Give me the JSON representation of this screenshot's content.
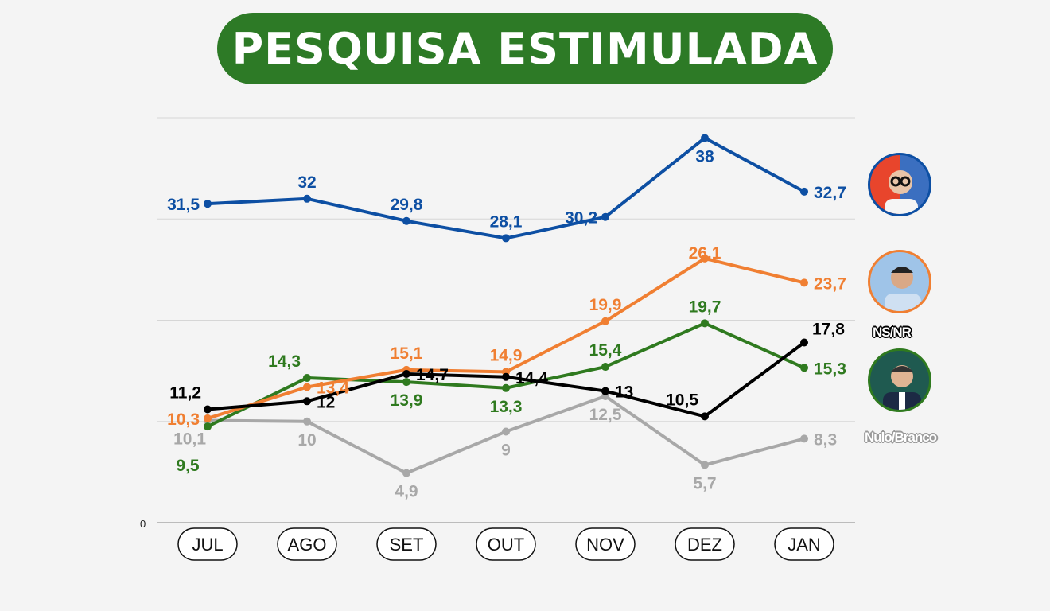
{
  "title": "PESQUISA ESTIMULADA",
  "legend": {
    "nsnr": "NS/NR",
    "nulo": "Nulo/Branco"
  },
  "chart_data": {
    "type": "line",
    "title": "PESQUISA ESTIMULADA",
    "categories": [
      "JUL",
      "AGO",
      "SET",
      "OUT",
      "NOV",
      "DEZ",
      "JAN"
    ],
    "ylim": [
      0,
      40
    ],
    "y_tick_labels": [
      "0"
    ],
    "grid": true,
    "series": [
      {
        "name": "",
        "color": "#0d4fa3",
        "values": [
          31.5,
          32,
          29.8,
          28.1,
          30.2,
          38,
          32.7
        ],
        "labels": [
          "31,5",
          "32",
          "29,8",
          "28,1",
          "30,2",
          "38",
          "32,7"
        ],
        "label_pos": [
          "left",
          "above",
          "above",
          "above",
          "left",
          "below",
          "right"
        ]
      },
      {
        "name": "",
        "color": "#f07f32",
        "values": [
          10.3,
          13.4,
          15.1,
          14.9,
          19.9,
          26.1,
          23.7
        ],
        "labels": [
          "10,3",
          "13,4",
          "15,1",
          "14,9",
          "19,9",
          "26,1",
          "23,7"
        ],
        "label_pos": [
          "left",
          "right",
          "above",
          "above",
          "above",
          "on",
          "right"
        ]
      },
      {
        "name": "",
        "color": "#2f7a1f",
        "values": [
          9.5,
          14.3,
          13.9,
          13.3,
          15.4,
          19.7,
          15.3
        ],
        "labels": [
          "9,5",
          "14,3",
          "13,9",
          "13,3",
          "15,4",
          "19,7",
          "15,3"
        ],
        "label_pos": [
          "belowfar",
          "aboveleft",
          "below",
          "below",
          "above",
          "above",
          "right"
        ]
      },
      {
        "name": "NS/NR",
        "color": "#000000",
        "values": [
          11.2,
          12,
          14.7,
          14.4,
          13,
          10.5,
          17.8
        ],
        "labels": [
          "11,2",
          "12",
          "14,7",
          "14,4",
          "13",
          "10,5",
          "17,8"
        ],
        "label_pos": [
          "aboveleft",
          "right",
          "right",
          "right",
          "right",
          "aboveleft",
          "aboveright"
        ]
      },
      {
        "name": "Nulo/Branco",
        "color": "#a8a8a8",
        "values": [
          10.1,
          10,
          4.9,
          9,
          12.5,
          5.7,
          8.3
        ],
        "labels": [
          "10,1",
          "10",
          "4,9",
          "9",
          "12,5",
          "5,7",
          "8,3"
        ],
        "label_pos": [
          "belowleft",
          "below",
          "below",
          "below",
          "below",
          "below",
          "right"
        ]
      }
    ]
  }
}
